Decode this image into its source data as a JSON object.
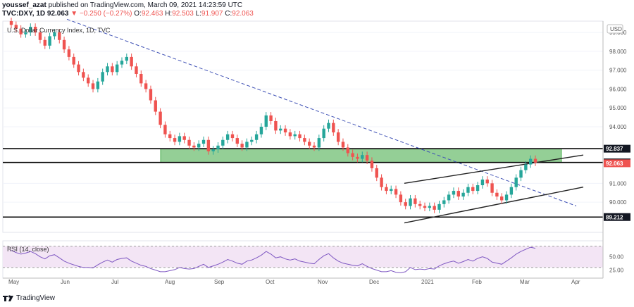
{
  "header": {
    "author": "youssef_azat",
    "published_text": "published on TradingView.com, March 09, 2021 14:23:59 UTC",
    "ticker": "TVC:DXY, 1D",
    "last": "92.063",
    "change": "−0.250 (−0.27%)",
    "o_label": "O:",
    "o_value": "92.463",
    "h_label": "H:",
    "h_value": "92.503",
    "l_label": "L:",
    "l_value": "91.907",
    "c_label": "C:",
    "c_value": "92.063"
  },
  "chart": {
    "symbol_title": "U.S. Dollar Currency Index, 1D, TVC",
    "currency": "USD",
    "price_ticks": [
      "99.000",
      "98.000",
      "97.000",
      "96.000",
      "95.000",
      "94.000",
      "91.000",
      "90.000"
    ],
    "price_tick_values": [
      99,
      98,
      97,
      96,
      95,
      94,
      91,
      90
    ],
    "price_tags": [
      {
        "text": "92.837",
        "value": 92.837,
        "style": "dark"
      },
      {
        "text": "92.109",
        "value": 92.109,
        "style": "dark"
      },
      {
        "text": "92.063",
        "value": 92.063,
        "style": "red"
      },
      {
        "text": "89.212",
        "value": 89.212,
        "style": "dark"
      }
    ],
    "time_labels": [
      "May",
      "Jun",
      "Jul",
      "Aug",
      "Sep",
      "Oct",
      "Nov",
      "Dec",
      "2021",
      "Feb",
      "Mar",
      "Apr"
    ],
    "rsi_title": "RSI (14, close)",
    "rsi_ticks": [
      "50.00",
      "25.00"
    ],
    "rsi_tick_values": [
      50,
      25
    ],
    "colors": {
      "up": "#26a69a",
      "down": "#ef5350",
      "zone_fill": "#81c784",
      "zone_edge": "#4caf50",
      "trendline": "#3f51b5",
      "rsi_line": "#7e57c2",
      "rsi_band": "#f3e5f5"
    }
  },
  "chart_data": {
    "type": "candlestick",
    "title": "U.S. Dollar Currency Index, 1D, TVC",
    "ylim": [
      88.4,
      99.6
    ],
    "key_levels": [
      92.837,
      92.109,
      89.212
    ],
    "current_price": 92.063,
    "closes": [
      99.4,
      99.2,
      98.9,
      99.0,
      99.3,
      99.0,
      98.6,
      98.3,
      98.8,
      99.0,
      98.6,
      98.1,
      97.7,
      97.3,
      96.9,
      96.6,
      96.3,
      96.0,
      96.4,
      96.9,
      97.2,
      96.9,
      97.3,
      97.5,
      97.7,
      97.2,
      96.8,
      96.3,
      96.0,
      95.4,
      94.8,
      94.1,
      93.6,
      93.4,
      93.2,
      93.5,
      93.3,
      93.0,
      92.9,
      93.1,
      93.3,
      92.7,
      92.8,
      93.0,
      93.3,
      93.6,
      93.4,
      93.1,
      92.9,
      93.2,
      93.3,
      93.6,
      94.0,
      94.6,
      94.3,
      93.8,
      93.9,
      93.7,
      93.5,
      93.6,
      93.4,
      93.2,
      93.0,
      92.9,
      93.4,
      93.9,
      94.2,
      93.7,
      93.2,
      92.9,
      92.6,
      92.4,
      92.3,
      92.5,
      92.2,
      91.8,
      91.3,
      90.8,
      90.6,
      90.7,
      90.4,
      90.0,
      89.8,
      90.2,
      89.9,
      89.8,
      89.7,
      89.8,
      89.6,
      89.9,
      90.1,
      90.4,
      90.6,
      90.3,
      90.5,
      90.8,
      90.6,
      90.9,
      91.2,
      91.0,
      90.5,
      90.3,
      90.1,
      90.4,
      90.8,
      91.3,
      91.7,
      92.0,
      92.3,
      92.1
    ],
    "rsi": [
      62,
      58,
      55,
      57,
      60,
      56,
      50,
      46,
      52,
      54,
      48,
      42,
      38,
      35,
      32,
      30,
      30,
      29,
      35,
      40,
      44,
      40,
      45,
      47,
      48,
      42,
      38,
      34,
      32,
      28,
      25,
      22,
      22,
      24,
      26,
      30,
      28,
      27,
      28,
      32,
      36,
      30,
      33,
      36,
      40,
      45,
      42,
      38,
      36,
      42,
      44,
      48,
      53,
      60,
      55,
      48,
      50,
      46,
      44,
      46,
      42,
      40,
      38,
      37,
      45,
      52,
      56,
      48,
      42,
      38,
      36,
      34,
      33,
      37,
      32,
      28,
      25,
      22,
      22,
      24,
      21,
      20,
      22,
      30,
      26,
      27,
      26,
      28,
      27,
      33,
      37,
      40,
      42,
      38,
      41,
      45,
      42,
      47,
      50,
      47,
      40,
      38,
      36,
      42,
      48,
      55,
      60,
      64,
      68,
      66
    ]
  }
}
